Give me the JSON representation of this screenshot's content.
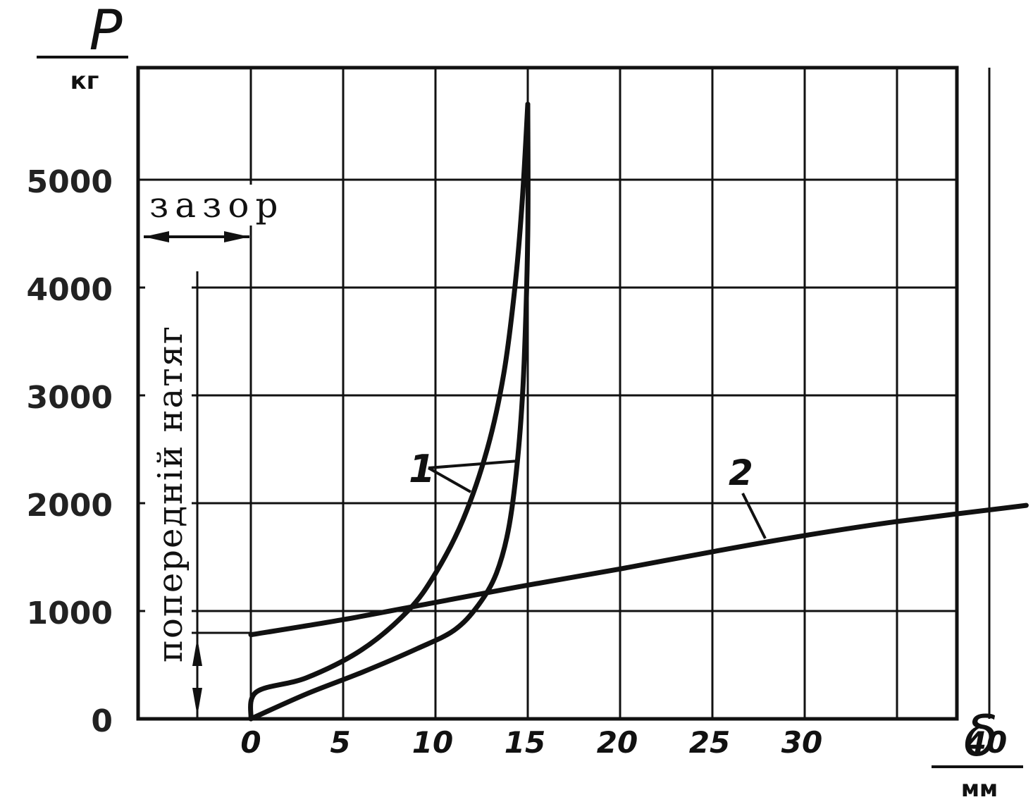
{
  "chart_data": {
    "type": "line",
    "ylabel_symbol": "P",
    "ylabel_unit": "кг",
    "xlabel_symbol": "δ",
    "xlabel_unit": "мм",
    "xlim": [
      -6,
      42
    ],
    "ylim": [
      0,
      6000
    ],
    "x_ticks": [
      "0",
      "5",
      "10",
      "15",
      "20",
      "25",
      "30",
      "40"
    ],
    "x_tick_values": [
      0,
      5,
      10,
      15,
      20,
      25,
      30,
      40
    ],
    "y_ticks": [
      "0",
      "1000",
      "2000",
      "3000",
      "4000",
      "5000"
    ],
    "y_tick_values": [
      0,
      1000,
      2000,
      3000,
      4000,
      5000
    ],
    "grid": true,
    "series": [
      {
        "name": "1",
        "points": [
          [
            0,
            0
          ],
          [
            0.3,
            250
          ],
          [
            3,
            380
          ],
          [
            6,
            640
          ],
          [
            8.5,
            1000
          ],
          [
            10,
            1350
          ],
          [
            11.5,
            1850
          ],
          [
            12.8,
            2500
          ],
          [
            13.7,
            3200
          ],
          [
            14.3,
            4000
          ],
          [
            14.7,
            4800
          ],
          [
            15,
            5700
          ]
        ]
      },
      {
        "name": "1",
        "points": [
          [
            0,
            0
          ],
          [
            3,
            230
          ],
          [
            6,
            430
          ],
          [
            9,
            650
          ],
          [
            11,
            820
          ],
          [
            12.3,
            1050
          ],
          [
            13.3,
            1350
          ],
          [
            14,
            1800
          ],
          [
            14.5,
            2500
          ],
          [
            14.8,
            3300
          ],
          [
            15,
            4500
          ],
          [
            15,
            5700
          ]
        ]
      },
      {
        "name": "2",
        "points": [
          [
            0,
            780
          ],
          [
            5,
            920
          ],
          [
            10,
            1080
          ],
          [
            15,
            1240
          ],
          [
            20,
            1390
          ],
          [
            25,
            1550
          ],
          [
            30,
            1700
          ],
          [
            35,
            1830
          ],
          [
            42,
            1980
          ]
        ]
      }
    ],
    "annotations": {
      "gap": "зазор",
      "pretension": "попередній натяг",
      "label_1": "1",
      "label_2": "2"
    }
  }
}
